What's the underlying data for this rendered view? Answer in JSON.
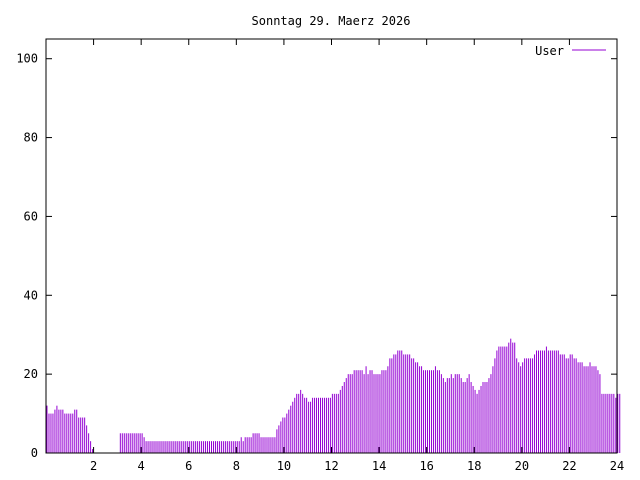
{
  "chart_data": {
    "type": "bar",
    "title": "Sonntag 29. Maerz 2026",
    "xlabel": "",
    "ylabel": "",
    "xlim": [
      0,
      24
    ],
    "ylim": [
      0,
      105
    ],
    "xticks": [
      2,
      4,
      6,
      8,
      10,
      12,
      14,
      16,
      18,
      20,
      22,
      24
    ],
    "yticks": [
      0,
      20,
      40,
      60,
      80,
      100
    ],
    "grid": false,
    "legend_position": "top-right",
    "series": [
      {
        "name": "User",
        "color": "#9400d3",
        "x_step_hours": 0.0833,
        "values": [
          12,
          10,
          10,
          10,
          11,
          12,
          11,
          11,
          11,
          10,
          10,
          10,
          10,
          10,
          11,
          11,
          9,
          9,
          9,
          9,
          7,
          5,
          3,
          1,
          0,
          0,
          0,
          0,
          0,
          0,
          0,
          0,
          0,
          0,
          0,
          0,
          0,
          5,
          5,
          5,
          5,
          5,
          5,
          5,
          5,
          5,
          5,
          5,
          5,
          4,
          3,
          3,
          3,
          3,
          3,
          3,
          3,
          3,
          3,
          3,
          3,
          3,
          3,
          3,
          3,
          3,
          3,
          3,
          3,
          3,
          3,
          3,
          3,
          3,
          3,
          3,
          3,
          3,
          3,
          3,
          3,
          3,
          3,
          3,
          3,
          3,
          3,
          3,
          3,
          3,
          3,
          3,
          3,
          3,
          3,
          3,
          3,
          3,
          4,
          3,
          4,
          4,
          4,
          4,
          5,
          5,
          5,
          5,
          4,
          4,
          4,
          4,
          4,
          4,
          4,
          4,
          6,
          7,
          8,
          9,
          9,
          10,
          11,
          12,
          13,
          14,
          15,
          15,
          16,
          15,
          14,
          14,
          13,
          13,
          14,
          14,
          14,
          14,
          14,
          14,
          14,
          14,
          14,
          14,
          15,
          15,
          15,
          15,
          16,
          17,
          18,
          19,
          20,
          20,
          20,
          21,
          21,
          21,
          21,
          21,
          20,
          22,
          20,
          21,
          21,
          20,
          20,
          20,
          20,
          21,
          21,
          21,
          22,
          24,
          24,
          25,
          25,
          26,
          26,
          26,
          25,
          25,
          25,
          25,
          24,
          24,
          23,
          23,
          22,
          22,
          21,
          21,
          21,
          21,
          21,
          21,
          22,
          21,
          21,
          20,
          19,
          18,
          19,
          19,
          20,
          19,
          20,
          20,
          20,
          19,
          18,
          18,
          19,
          20,
          18,
          17,
          16,
          15,
          16,
          17,
          18,
          18,
          18,
          19,
          20,
          22,
          24,
          26,
          27,
          27,
          27,
          27,
          27,
          28,
          29,
          28,
          28,
          24,
          23,
          22,
          23,
          24,
          24,
          24,
          24,
          24,
          25,
          26,
          26,
          26,
          26,
          26,
          27,
          26,
          26,
          26,
          26,
          26,
          26,
          25,
          25,
          25,
          24,
          24,
          25,
          25,
          24,
          24,
          23,
          23,
          23,
          22,
          22,
          22,
          23,
          22,
          22,
          22,
          21,
          20,
          15,
          15,
          15,
          15,
          15,
          15,
          15,
          14,
          15,
          15
        ]
      }
    ]
  }
}
